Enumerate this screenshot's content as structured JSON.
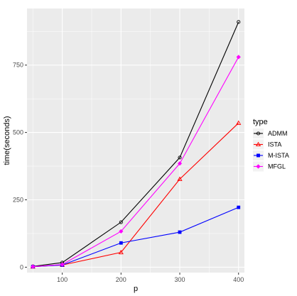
{
  "chart_data": {
    "type": "line",
    "xlabel": "p",
    "ylabel": "time(seconds)",
    "x": [
      50,
      100,
      200,
      300,
      400
    ],
    "xlim": [
      40,
      410
    ],
    "ylim": [
      -20,
      960
    ],
    "xticks": [
      100,
      200,
      300,
      400
    ],
    "yticks": [
      0,
      250,
      500,
      750
    ],
    "xtick_labels": [
      "100",
      "200",
      "300",
      "400"
    ],
    "ytick_labels": [
      "0",
      "250",
      "500",
      "750"
    ],
    "grid": true,
    "legend_position": "right",
    "legend_title": "type",
    "series": [
      {
        "name": "ADMM",
        "color": "#000000",
        "marker": "circle",
        "values": [
          3,
          17,
          167,
          407,
          910
        ]
      },
      {
        "name": "ISTA",
        "color": "#ff0000",
        "marker": "triangle",
        "values": [
          2,
          8,
          55,
          327,
          535
        ]
      },
      {
        "name": "M-ISTA",
        "color": "#0000ff",
        "marker": "square",
        "values": [
          2,
          8,
          90,
          130,
          222
        ]
      },
      {
        "name": "MFGL",
        "color": "#ff00ff",
        "marker": "diamond",
        "values": [
          2,
          10,
          133,
          385,
          780
        ]
      }
    ],
    "panel_background": "#ebebeb",
    "grid_color": "#ffffff"
  }
}
